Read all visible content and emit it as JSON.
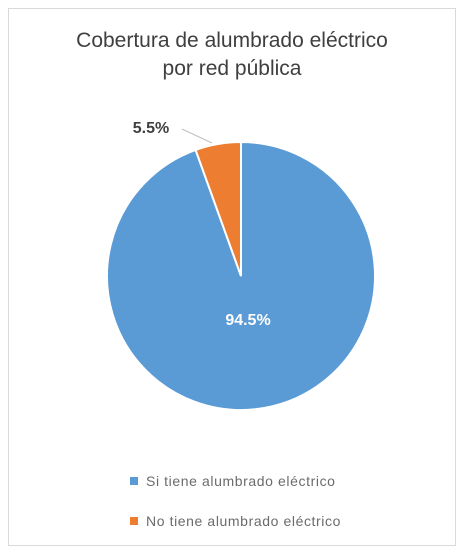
{
  "chart_data": {
    "type": "pie",
    "title_line1": "Cobertura de alumbrado eléctrico",
    "title_line2": "por red pública",
    "slices": [
      {
        "label": "Si tiene alumbrado eléctrico",
        "value": 94.5,
        "value_label": "94.5%",
        "color": "#5b9bd5"
      },
      {
        "label": "No tiene alumbrado eléctrico",
        "value": 5.5,
        "value_label": "5.5%",
        "color": "#ed7d31"
      }
    ],
    "legend_position": "bottom"
  }
}
